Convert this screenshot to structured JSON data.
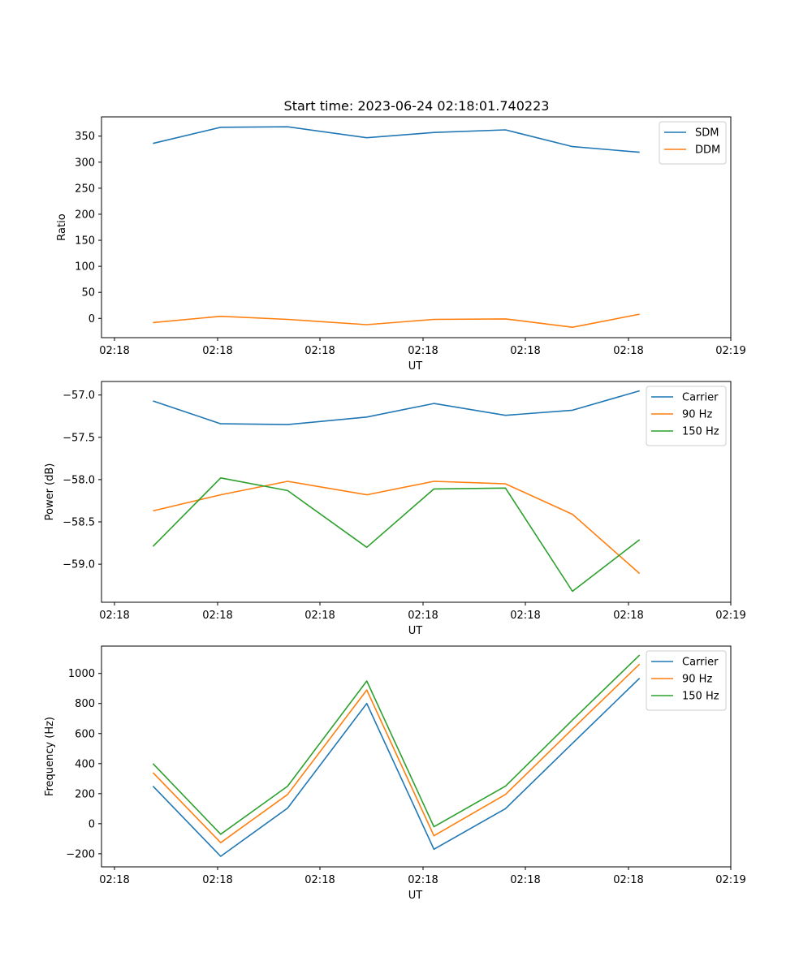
{
  "figure": {
    "title": "Start time: 2023-06-24 02:18:01.740223"
  },
  "chart_data": [
    {
      "type": "line",
      "title": "Start time: 2023-06-24 02:18:01.740223",
      "xlabel": "UT",
      "ylabel": "Ratio",
      "x_tick_labels": [
        "02:18",
        "02:18",
        "02:18",
        "02:18",
        "02:18",
        "02:18",
        "02:19"
      ],
      "y_ticks": [
        0,
        50,
        100,
        150,
        200,
        250,
        300,
        350
      ],
      "y_tick_labels": [
        "0",
        "50",
        "100",
        "150",
        "200",
        "250",
        "300",
        "350"
      ],
      "ylim": [
        -37,
        387
      ],
      "legend": "top-right",
      "grid": false,
      "series": [
        {
          "name": "SDM",
          "color": "#1f77b4",
          "values": [
            336,
            367,
            368,
            347,
            357,
            362,
            330,
            319
          ]
        },
        {
          "name": "DDM",
          "color": "#ff7f0e",
          "values": [
            -8,
            4,
            -2,
            -12,
            -2,
            -1,
            -17,
            8
          ]
        }
      ]
    },
    {
      "type": "line",
      "title": "",
      "xlabel": "UT",
      "ylabel": "Power (dB)",
      "x_tick_labels": [
        "02:18",
        "02:18",
        "02:18",
        "02:18",
        "02:18",
        "02:18",
        "02:19"
      ],
      "y_ticks": [
        -59.0,
        -58.5,
        -58.0,
        -57.5,
        -57.0
      ],
      "y_tick_labels": [
        "−59.0",
        "−58.5",
        "−58.0",
        "−57.5",
        "−57.0"
      ],
      "ylim": [
        -59.45,
        -56.84
      ],
      "legend": "top-right",
      "grid": false,
      "series": [
        {
          "name": "Carrier",
          "color": "#1f77b4",
          "values": [
            -57.07,
            -57.34,
            -57.35,
            -57.26,
            -57.1,
            -57.24,
            -57.18,
            -56.95
          ]
        },
        {
          "name": "90 Hz",
          "color": "#ff7f0e",
          "values": [
            -58.37,
            -58.18,
            -58.02,
            -58.18,
            -58.02,
            -58.05,
            -58.41,
            -59.11
          ]
        },
        {
          "name": "150 Hz",
          "color": "#2ca02c",
          "values": [
            -58.79,
            -57.98,
            -58.13,
            -58.8,
            -58.11,
            -58.1,
            -59.32,
            -58.71
          ]
        }
      ]
    },
    {
      "type": "line",
      "title": "",
      "xlabel": "UT",
      "ylabel": "Frequency (Hz)",
      "x_tick_labels": [
        "02:18",
        "02:18",
        "02:18",
        "02:18",
        "02:18",
        "02:18",
        "02:19"
      ],
      "y_ticks": [
        -200,
        0,
        200,
        400,
        600,
        800,
        1000
      ],
      "y_tick_labels": [
        "−200",
        "0",
        "200",
        "400",
        "600",
        "800",
        "1000"
      ],
      "ylim": [
        -287,
        1182
      ],
      "legend": "top-right",
      "grid": false,
      "series": [
        {
          "name": "Carrier",
          "color": "#1f77b4",
          "values": [
            250,
            -217,
            104,
            800,
            -170,
            100,
            535,
            968
          ]
        },
        {
          "name": "90 Hz",
          "color": "#ff7f0e",
          "values": [
            340,
            -126,
            195,
            890,
            -80,
            195,
            630,
            1062
          ]
        },
        {
          "name": "150 Hz",
          "color": "#2ca02c",
          "values": [
            400,
            -70,
            250,
            950,
            -20,
            250,
            690,
            1122
          ]
        }
      ]
    }
  ]
}
